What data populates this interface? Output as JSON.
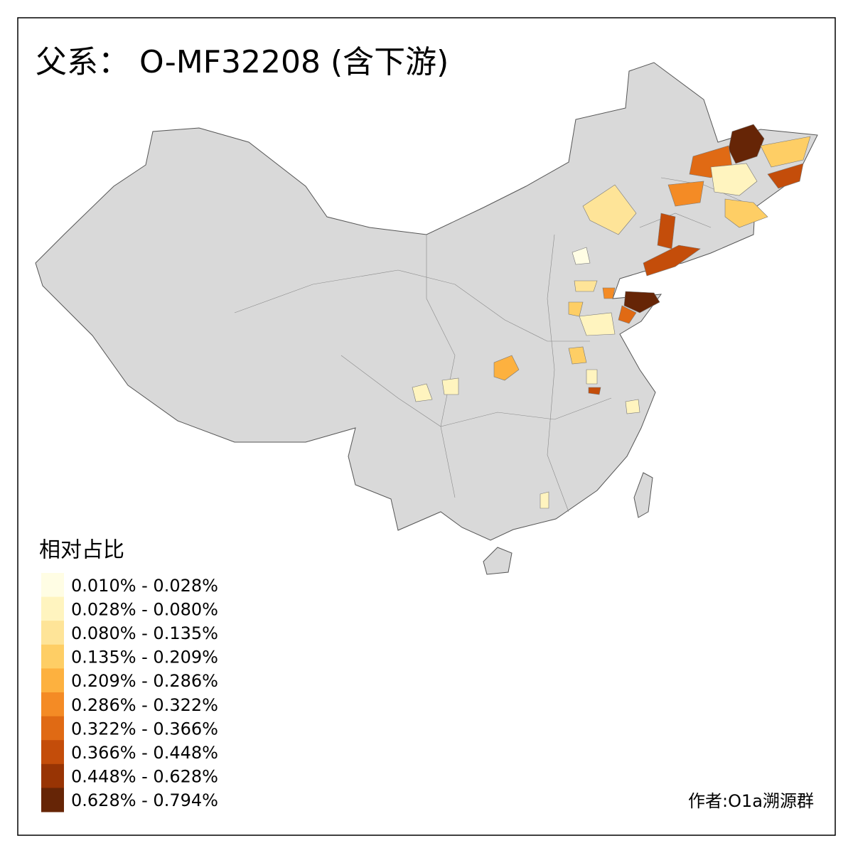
{
  "title": "父系： O-MF32208 (含下游)",
  "legend": {
    "title": "相对占比",
    "items": [
      {
        "label": "0.010% - 0.028%",
        "color": "#fffde4"
      },
      {
        "label": "0.028% - 0.080%",
        "color": "#fff4bf"
      },
      {
        "label": "0.080% - 0.135%",
        "color": "#fee498"
      },
      {
        "label": "0.135% - 0.209%",
        "color": "#fece65"
      },
      {
        "label": "0.209% - 0.286%",
        "color": "#fdb13f"
      },
      {
        "label": "0.286% - 0.322%",
        "color": "#f48b25"
      },
      {
        "label": "0.322% - 0.366%",
        "color": "#e06a14"
      },
      {
        "label": "0.366% - 0.448%",
        "color": "#c44d0a"
      },
      {
        "label": "0.448% - 0.628%",
        "color": "#983404"
      },
      {
        "label": "0.628% - 0.794%",
        "color": "#662506"
      }
    ]
  },
  "credit": "作者:O1a溯源群"
}
